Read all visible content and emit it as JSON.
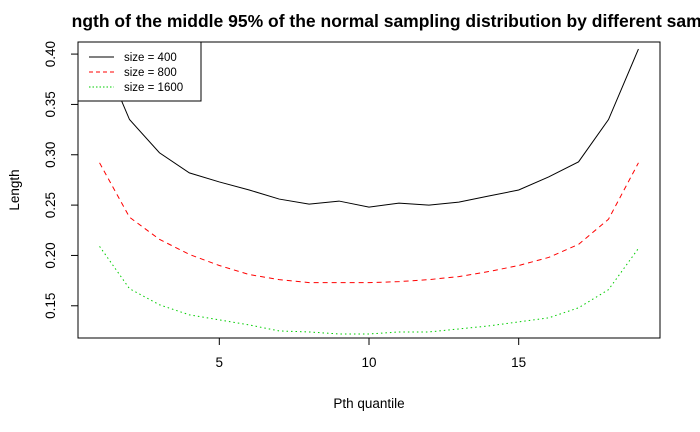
{
  "chart_data": {
    "type": "line",
    "title": "ngth of the middle 95% of the normal sampling distribution by different samp",
    "xlabel": "Pth quantile",
    "ylabel": "Length",
    "xlim": [
      0.28,
      19.72
    ],
    "ylim": [
      0.118,
      0.412
    ],
    "x_ticks": [
      5,
      10,
      15
    ],
    "y_ticks": [
      0.15,
      0.2,
      0.25,
      0.3,
      0.35,
      0.4
    ],
    "grid": false,
    "legend_position": "top-left",
    "x": [
      1,
      2,
      3,
      4,
      5,
      6,
      7,
      8,
      9,
      10,
      11,
      12,
      13,
      14,
      15,
      16,
      17,
      18,
      19
    ],
    "series": [
      {
        "name": "size = 400",
        "color": "#000000",
        "dash": "solid",
        "values": [
          0.405,
          0.335,
          0.302,
          0.282,
          0.273,
          0.265,
          0.256,
          0.251,
          0.254,
          0.248,
          0.252,
          0.25,
          0.253,
          0.259,
          0.265,
          0.278,
          0.293,
          0.335,
          0.405
        ]
      },
      {
        "name": "size = 800",
        "color": "#ff0000",
        "dash": "dashed",
        "values": [
          0.292,
          0.238,
          0.216,
          0.201,
          0.19,
          0.181,
          0.176,
          0.173,
          0.173,
          0.173,
          0.174,
          0.176,
          0.179,
          0.184,
          0.19,
          0.198,
          0.211,
          0.236,
          0.292
        ]
      },
      {
        "name": "size = 1600",
        "color": "#00cd00",
        "dash": "dotted",
        "values": [
          0.209,
          0.167,
          0.151,
          0.141,
          0.136,
          0.131,
          0.125,
          0.124,
          0.122,
          0.122,
          0.124,
          0.124,
          0.127,
          0.13,
          0.134,
          0.138,
          0.148,
          0.166,
          0.207
        ]
      }
    ]
  }
}
